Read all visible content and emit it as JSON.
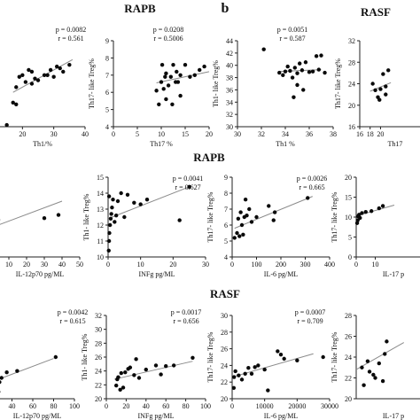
{
  "figure": {
    "section_top_label": "RAPB",
    "panel_b_letter": "b",
    "section_top_right_label": "RASF",
    "section_mid_label": "RAPB",
    "section_bottom_label": "RASF"
  },
  "chart_data": [
    {
      "type": "scatter",
      "group": "top",
      "xlabel": "Th1/%",
      "ylabel": "",
      "xlim": [
        10,
        40
      ],
      "ylim": [
        4,
        9
      ],
      "xticks": [
        10,
        20,
        30,
        40
      ],
      "yticks": [],
      "stats": [
        "p = 0.0082",
        "r = 0.561"
      ],
      "trend": [
        [
          17,
          6.0
        ],
        [
          36,
          7.9
        ]
      ],
      "points": [
        [
          15,
          4.1
        ],
        [
          17,
          5.4
        ],
        [
          18,
          5.3
        ],
        [
          18,
          6.3
        ],
        [
          19,
          6.9
        ],
        [
          20,
          7.0
        ],
        [
          21,
          6.6
        ],
        [
          22,
          7.3
        ],
        [
          23,
          6.5
        ],
        [
          23,
          7.2
        ],
        [
          24,
          6.8
        ],
        [
          25,
          6.7
        ],
        [
          27,
          7.0
        ],
        [
          28,
          7.0
        ],
        [
          29,
          7.3
        ],
        [
          30,
          6.9
        ],
        [
          31,
          7.5
        ],
        [
          32,
          7.4
        ],
        [
          33,
          7.2
        ],
        [
          35,
          7.6
        ]
      ]
    },
    {
      "type": "scatter",
      "group": "top",
      "xlabel": "Th17 %",
      "ylabel": "Th17- like Treg%",
      "xlim": [
        0,
        20
      ],
      "ylim": [
        4,
        9
      ],
      "xticks": [
        0,
        5,
        10,
        15,
        20
      ],
      "yticks": [
        4,
        5,
        6,
        7,
        8,
        9
      ],
      "stats": [
        "p = 0.0208",
        "r = 0.5006"
      ],
      "trend": [
        [
          9,
          6.55
        ],
        [
          20,
          7.2
        ]
      ],
      "points": [
        [
          9,
          6.1
        ],
        [
          9.5,
          5.3
        ],
        [
          10,
          6.6
        ],
        [
          10.2,
          7.6
        ],
        [
          10.5,
          6.2
        ],
        [
          10.8,
          6.9
        ],
        [
          11,
          7.1
        ],
        [
          11,
          5.6
        ],
        [
          11.5,
          6.4
        ],
        [
          12,
          6.9
        ],
        [
          12.3,
          5.3
        ],
        [
          12.5,
          7.6
        ],
        [
          13,
          6.6
        ],
        [
          13.2,
          7.2
        ],
        [
          13.5,
          6.6
        ],
        [
          14,
          7.0
        ],
        [
          14,
          5.8
        ],
        [
          15,
          7.6
        ],
        [
          16,
          6.9
        ],
        [
          17,
          7.0
        ],
        [
          18,
          7.3
        ],
        [
          19,
          7.5
        ]
      ]
    },
    {
      "type": "scatter",
      "group": "top",
      "xlabel": "Th1 %",
      "ylabel": "Th1- like Treg%",
      "xlim": [
        30,
        38
      ],
      "ylim": [
        30,
        44
      ],
      "xticks": [
        30,
        32,
        34,
        36,
        38
      ],
      "yticks": [
        30,
        32,
        34,
        36,
        38,
        40,
        42,
        44
      ],
      "stats": [
        "p = 0.0051",
        "r = 0.587"
      ],
      "trend": [
        [
          33.5,
          39.0
        ],
        [
          37,
          39.3
        ]
      ],
      "points": [
        [
          32.2,
          42.6
        ],
        [
          33.5,
          38.8
        ],
        [
          33.8,
          38.4
        ],
        [
          34,
          39.0
        ],
        [
          34.2,
          39.8
        ],
        [
          34.4,
          39.1
        ],
        [
          34.6,
          38.0
        ],
        [
          34.8,
          39.6
        ],
        [
          35,
          38.7
        ],
        [
          35,
          36.8
        ],
        [
          35.2,
          40.3
        ],
        [
          35.4,
          39.2
        ],
        [
          35.7,
          40.5
        ],
        [
          36,
          38.9
        ],
        [
          36.3,
          39.0
        ],
        [
          36.6,
          41.5
        ],
        [
          36.8,
          39.3
        ],
        [
          37,
          41.6
        ],
        [
          37.3,
          38.8
        ],
        [
          35.5,
          36.0
        ],
        [
          34.7,
          34.8
        ]
      ]
    },
    {
      "type": "scatter",
      "group": "top",
      "xlabel": "Th17",
      "ylabel": "Th17- like Treg%",
      "xlim": [
        16,
        30
      ],
      "ylim": [
        16,
        32
      ],
      "xticks": [
        16,
        18,
        20
      ],
      "yticks": [
        16,
        20,
        24,
        28,
        32
      ],
      "stats": [],
      "trend": [
        [
          18,
          22.6
        ],
        [
          22,
          24.2
        ]
      ],
      "points": [
        [
          18.5,
          24.0
        ],
        [
          19,
          22.8
        ],
        [
          19.5,
          21.5
        ],
        [
          20,
          23.0
        ],
        [
          20.5,
          25.8
        ],
        [
          21,
          23.5
        ],
        [
          21,
          22.0
        ],
        [
          21.5,
          26.5
        ],
        [
          19.8,
          21.0
        ]
      ]
    },
    {
      "type": "scatter",
      "group": "middle",
      "xlabel": "IL-12p70 pg/ML",
      "ylabel": "",
      "xlim": [
        0,
        50
      ],
      "ylim": [
        0,
        15
      ],
      "xticks": [
        10,
        20,
        30,
        40,
        50
      ],
      "yticks": [],
      "stats": [],
      "trend": [
        [
          0,
          5.5
        ],
        [
          40,
          10.5
        ]
      ],
      "points": [
        [
          1,
          6.3
        ],
        [
          3,
          6.5
        ],
        [
          4,
          7.0
        ],
        [
          30,
          7.3
        ],
        [
          38,
          7.9
        ]
      ]
    },
    {
      "type": "scatter",
      "group": "middle",
      "xlabel": "INFg pg/ML",
      "ylabel": "Th1- like Treg%",
      "xlim": [
        0,
        30
      ],
      "ylim": [
        10,
        15
      ],
      "xticks": [
        0,
        10,
        20,
        30
      ],
      "yticks": [
        10,
        11,
        12,
        13,
        14,
        15
      ],
      "stats": [
        "p = 0.0041",
        "r = 0.627"
      ],
      "trend": [
        [
          0,
          12.4
        ],
        [
          25,
          14.4
        ]
      ],
      "points": [
        [
          0.2,
          10.4
        ],
        [
          0.3,
          11.0
        ],
        [
          0.4,
          11.5
        ],
        [
          0.6,
          12.0
        ],
        [
          0.8,
          12.4
        ],
        [
          1,
          12.7
        ],
        [
          1.2,
          13.1
        ],
        [
          1.5,
          13.6
        ],
        [
          2,
          12.2
        ],
        [
          2.5,
          12.6
        ],
        [
          3,
          13.5
        ],
        [
          4,
          14.0
        ],
        [
          5,
          12.5
        ],
        [
          6,
          13.9
        ],
        [
          8,
          13.4
        ],
        [
          10,
          13.3
        ],
        [
          12,
          13.6
        ],
        [
          0.3,
          13.8
        ],
        [
          22,
          12.3
        ],
        [
          25,
          14.4
        ]
      ]
    },
    {
      "type": "scatter",
      "group": "middle",
      "xlabel": "IL-6 pg/ML",
      "ylabel": "Th17- like Treg%",
      "xlim": [
        0,
        400
      ],
      "ylim": [
        4,
        9
      ],
      "xticks": [
        0,
        100,
        200,
        300,
        400
      ],
      "yticks": [
        4,
        5,
        6,
        7,
        8,
        9
      ],
      "stats": [
        "p = 0.0026",
        "r = 0.665"
      ],
      "trend": [
        [
          10,
          5.8
        ],
        [
          330,
          7.8
        ]
      ],
      "points": [
        [
          10,
          5.2
        ],
        [
          20,
          5.5
        ],
        [
          25,
          6.4
        ],
        [
          30,
          5.3
        ],
        [
          35,
          6.8
        ],
        [
          40,
          6.0
        ],
        [
          45,
          5.4
        ],
        [
          50,
          6.5
        ],
        [
          55,
          7.6
        ],
        [
          60,
          6.6
        ],
        [
          70,
          7.0
        ],
        [
          80,
          6.2
        ],
        [
          100,
          6.5
        ],
        [
          150,
          7.2
        ],
        [
          170,
          6.3
        ],
        [
          175,
          6.8
        ],
        [
          310,
          7.7
        ]
      ]
    },
    {
      "type": "scatter",
      "group": "middle",
      "xlabel": "IL-17 p",
      "ylabel": "Th17- like Treg%",
      "xlim": [
        0,
        40
      ],
      "ylim": [
        0,
        20
      ],
      "xticks": [
        0,
        10
      ],
      "yticks": [
        0,
        5,
        10,
        15,
        20
      ],
      "stats": [],
      "trend": [
        [
          0,
          10.3
        ],
        [
          20,
          13
        ]
      ],
      "points": [
        [
          0.5,
          8.5
        ],
        [
          0.8,
          9.2
        ],
        [
          1,
          10.2
        ],
        [
          1.5,
          10.6
        ],
        [
          2,
          9.8
        ],
        [
          3,
          11.0
        ],
        [
          5,
          11.3
        ],
        [
          8,
          11.5
        ],
        [
          12,
          12.2
        ],
        [
          14,
          12.8
        ]
      ]
    },
    {
      "type": "scatter",
      "group": "bottom",
      "xlabel": "IL-12p70 pg/ML",
      "ylabel": "",
      "xlim": [
        20,
        100
      ],
      "ylim": [
        20,
        32
      ],
      "xticks": [
        20,
        40,
        60,
        80,
        100
      ],
      "yticks": [],
      "stats": [
        "p = 0.0042",
        "r = 0.615"
      ],
      "trend": [
        [
          20,
          22.4
        ],
        [
          80,
          25.8
        ]
      ],
      "points": [
        [
          20.5,
          22.5
        ],
        [
          21,
          23.5
        ],
        [
          22,
          22.0
        ],
        [
          24,
          24.0
        ],
        [
          25,
          23.2
        ],
        [
          27,
          21.0
        ],
        [
          28,
          22.4
        ],
        [
          30,
          23.0
        ],
        [
          35,
          23.8
        ],
        [
          45,
          24.0
        ],
        [
          82,
          26.0
        ]
      ]
    },
    {
      "type": "scatter",
      "group": "bottom",
      "xlabel": "INFg pg/ML",
      "ylabel": "Th1- like Treg%",
      "xlim": [
        0,
        100
      ],
      "ylim": [
        20,
        32
      ],
      "xticks": [
        0,
        20,
        40,
        60,
        80,
        100
      ],
      "yticks": [
        20,
        22,
        24,
        26,
        28,
        30,
        32
      ],
      "stats": [
        "p = 0.0017",
        "r = 0.656"
      ],
      "trend": [
        [
          8,
          22.8
        ],
        [
          87,
          25.4
        ]
      ],
      "points": [
        [
          10,
          21.9
        ],
        [
          11,
          22.8
        ],
        [
          12,
          23.1
        ],
        [
          14,
          21.3
        ],
        [
          15,
          23.7
        ],
        [
          17,
          21.6
        ],
        [
          19,
          23.8
        ],
        [
          22,
          24.3
        ],
        [
          24,
          24.5
        ],
        [
          28,
          23.4
        ],
        [
          30,
          25.7
        ],
        [
          33,
          23.0
        ],
        [
          40,
          24.2
        ],
        [
          50,
          24.8
        ],
        [
          55,
          23.5
        ],
        [
          60,
          24.7
        ],
        [
          68,
          24.8
        ],
        [
          87,
          25.9
        ]
      ]
    },
    {
      "type": "scatter",
      "group": "bottom",
      "xlabel": "IL-6 pg/ML",
      "ylabel": "Th17- like Treg%",
      "xlim": [
        0,
        30000
      ],
      "ylim": [
        20,
        30
      ],
      "xticks": [
        0,
        10000,
        20000,
        30000
      ],
      "yticks": [
        20,
        22,
        24,
        26,
        28,
        30
      ],
      "stats": [
        "p = 0.0007",
        "r = 0.709"
      ],
      "trend": [
        [
          0,
          22.6
        ],
        [
          25000,
          25.4
        ]
      ],
      "points": [
        [
          500,
          21.3
        ],
        [
          600,
          22.6
        ],
        [
          1000,
          23.3
        ],
        [
          2000,
          22.8
        ],
        [
          3000,
          22.3
        ],
        [
          4000,
          23.0
        ],
        [
          5000,
          23.7
        ],
        [
          6000,
          23.0
        ],
        [
          7000,
          23.8
        ],
        [
          8000,
          24.0
        ],
        [
          10000,
          23.5
        ],
        [
          11000,
          21.0
        ],
        [
          14000,
          25.7
        ],
        [
          15000,
          25.3
        ],
        [
          16000,
          24.8
        ],
        [
          20000,
          24.6
        ],
        [
          28000,
          25.0
        ]
      ]
    },
    {
      "type": "scatter",
      "group": "bottom",
      "xlabel": "IL-17 p",
      "ylabel": "Th17- like Treg%",
      "xlim": [
        0,
        40
      ],
      "ylim": [
        20,
        28
      ],
      "xticks": [],
      "yticks": [
        20,
        22,
        24,
        26,
        28
      ],
      "stats": [],
      "trend": [
        [
          0,
          22.8
        ],
        [
          25,
          25.4
        ]
      ],
      "points": [
        [
          3,
          23.0
        ],
        [
          4,
          21.3
        ],
        [
          6,
          23.6
        ],
        [
          7,
          22.6
        ],
        [
          9,
          22.3
        ],
        [
          10,
          22.0
        ],
        [
          12,
          23.4
        ],
        [
          14,
          21.7
        ],
        [
          15,
          24.3
        ],
        [
          16,
          25.5
        ]
      ]
    }
  ]
}
